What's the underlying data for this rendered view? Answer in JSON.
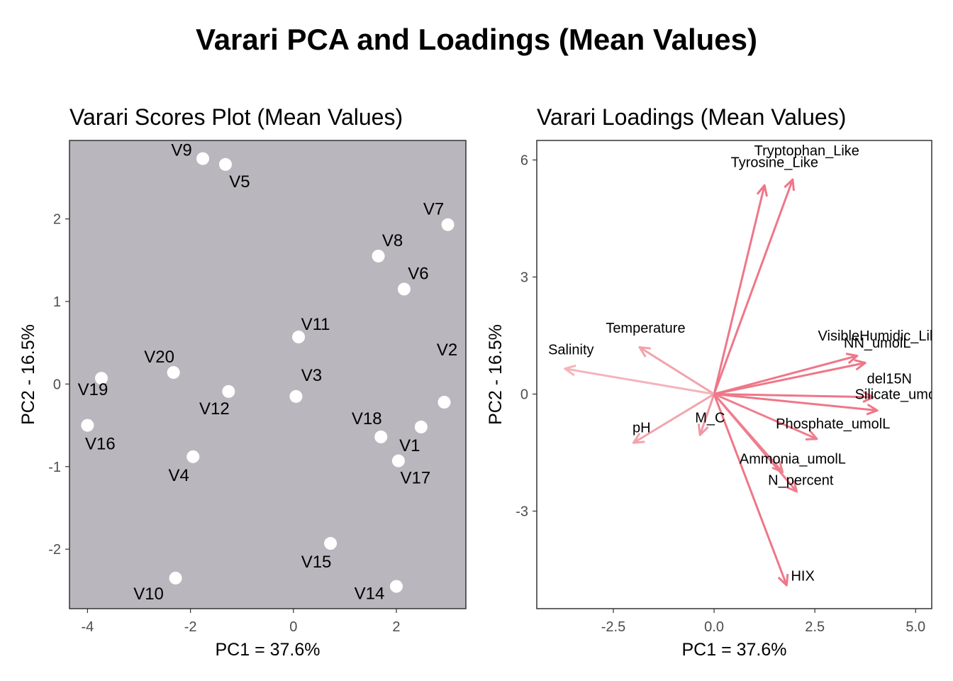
{
  "title": "Varari PCA and Loadings (Mean Values)",
  "colors": {
    "panel_bg": "#b9b6bd",
    "point": "#ffffff",
    "arrow_low": "#f6dede",
    "arrow_high": "#ee7788"
  },
  "chart_data": [
    {
      "type": "scatter",
      "title": "Varari Scores Plot (Mean Values)",
      "xlabel": "PC1 = 37.6%",
      "ylabel": "PC2 - 16.5%",
      "xlim": [
        -4.35,
        3.35
      ],
      "ylim": [
        -2.72,
        2.95
      ],
      "xticks": [
        -4,
        -2,
        0,
        2
      ],
      "yticks": [
        -2,
        -1,
        0,
        1,
        2
      ],
      "xtick_labels": [
        "-4",
        "-2",
        "0",
        "2"
      ],
      "ytick_labels": [
        "-2",
        "-1",
        "0",
        "1",
        "2"
      ],
      "grid": false,
      "points": [
        {
          "label": "V1",
          "x": 2.48,
          "y": -0.52
        },
        {
          "label": "V2",
          "x": 2.93,
          "y": -0.22
        },
        {
          "label": "V3",
          "x": 0.05,
          "y": -0.15
        },
        {
          "label": "V4",
          "x": -1.95,
          "y": -0.88
        },
        {
          "label": "V5",
          "x": -1.32,
          "y": 2.66
        },
        {
          "label": "V6",
          "x": 2.15,
          "y": 1.15
        },
        {
          "label": "V7",
          "x": 3.0,
          "y": 1.93
        },
        {
          "label": "V8",
          "x": 1.65,
          "y": 1.55
        },
        {
          "label": "V9",
          "x": -1.76,
          "y": 2.73
        },
        {
          "label": "V10",
          "x": -2.29,
          "y": -2.35
        },
        {
          "label": "V11",
          "x": 0.1,
          "y": 0.57
        },
        {
          "label": "V12",
          "x": -1.26,
          "y": -0.09
        },
        {
          "label": "V14",
          "x": 2.0,
          "y": -2.45
        },
        {
          "label": "V15",
          "x": 0.72,
          "y": -1.93
        },
        {
          "label": "V16",
          "x": -4.0,
          "y": -0.5
        },
        {
          "label": "V17",
          "x": 2.04,
          "y": -0.93
        },
        {
          "label": "V18",
          "x": 1.7,
          "y": -0.64
        },
        {
          "label": "V19",
          "x": -3.73,
          "y": 0.07
        },
        {
          "label": "V20",
          "x": -2.33,
          "y": 0.14
        }
      ]
    },
    {
      "type": "biplot-loadings",
      "title": "Varari Loadings (Mean Values)",
      "xlabel": "PC1 = 37.6%",
      "ylabel": "PC2 - 16.5%",
      "xlim": [
        -4.4,
        5.4
      ],
      "ylim": [
        -5.5,
        6.5
      ],
      "xticks": [
        -2.5,
        0,
        2.5,
        5
      ],
      "yticks": [
        -3,
        0,
        3,
        6
      ],
      "xtick_labels": [
        "-2.5",
        "0.0",
        "2.5",
        "5.0"
      ],
      "ytick_labels": [
        "-3",
        "0",
        "3",
        "6"
      ],
      "grid": false,
      "loadings": [
        {
          "variable": "Tryptophan_Like",
          "x": 1.95,
          "y": 5.5
        },
        {
          "variable": "Tyrosine_Like",
          "x": 1.25,
          "y": 5.35
        },
        {
          "variable": "Temperature",
          "x": -1.85,
          "y": 1.2
        },
        {
          "variable": "Salinity",
          "x": -3.7,
          "y": 0.65
        },
        {
          "variable": "VisibleHumidic_Like",
          "x": 3.55,
          "y": 0.98
        },
        {
          "variable": "NN_umolL",
          "x": 3.75,
          "y": 0.8
        },
        {
          "variable": "del15N",
          "x": 3.95,
          "y": -0.08
        },
        {
          "variable": "Silicate_umolL",
          "x": 4.05,
          "y": -0.42
        },
        {
          "variable": "Phosphate_umolL",
          "x": 2.55,
          "y": -1.15
        },
        {
          "variable": "pH",
          "x": -2.0,
          "y": -1.25
        },
        {
          "variable": "M_C",
          "x": -0.35,
          "y": -1.05
        },
        {
          "variable": "Ammonia_umolL",
          "x": 1.7,
          "y": -2.0
        },
        {
          "variable": "N_percent",
          "x": 2.05,
          "y": -2.5
        },
        {
          "variable": "HIX",
          "x": 1.8,
          "y": -4.9
        }
      ],
      "display_labels": [
        {
          "text": "Tryptophan_Like",
          "x": 2.3,
          "y": 6.25
        },
        {
          "text": "Tyrosine_Like",
          "x": 1.5,
          "y": 5.95
        },
        {
          "text": "Temperature",
          "x": -1.7,
          "y": 1.7
        },
        {
          "text": "Salinity",
          "x": -3.55,
          "y": 1.15
        },
        {
          "text": "VisibleHumidic_Lik",
          "x": 4.05,
          "y": 1.5
        },
        {
          "text": "NN_umolL",
          "x": 4.05,
          "y": 1.32
        },
        {
          "text": "del15N",
          "x": 4.35,
          "y": 0.4
        },
        {
          "text": "Silicate_umo",
          "x": 4.5,
          "y": 0.0
        },
        {
          "text": "Phosphate_umolL",
          "x": 2.95,
          "y": -0.75
        },
        {
          "text": "pH",
          "x": -1.8,
          "y": -0.85
        },
        {
          "text": "M_C",
          "x": -0.1,
          "y": -0.6
        },
        {
          "text": "Ammonia_umolL",
          "x": 1.95,
          "y": -1.65
        },
        {
          "text": "N_percent",
          "x": 2.15,
          "y": -2.2
        },
        {
          "text": "HIX",
          "x": 2.2,
          "y": -4.65
        }
      ]
    }
  ]
}
